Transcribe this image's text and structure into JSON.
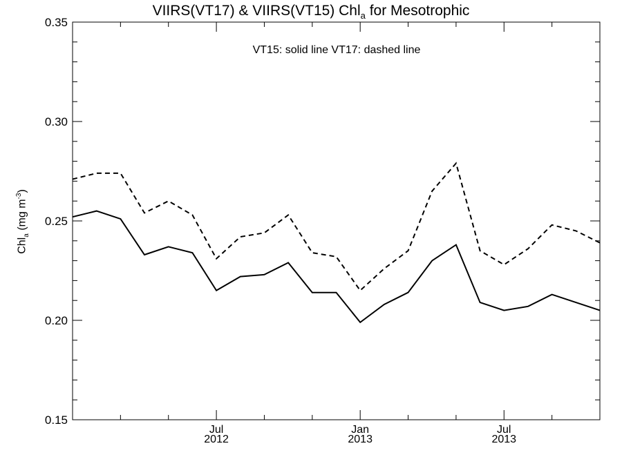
{
  "title": {
    "prefix": "VIIRS(VT17) & VIIRS(VT15)  Chl",
    "subscript": "a",
    "suffix": " for Mesotrophic"
  },
  "ylabel": {
    "base": "Chl",
    "subscript": "a",
    "unit_open": " (mg m",
    "superscript": "-3",
    "unit_close": ")"
  },
  "annotation": "VT15: solid line   VT17: dashed line",
  "chart_data": {
    "type": "line",
    "title": "VIIRS(VT17) & VIIRS(VT15)  Chla for Mesotrophic",
    "xlabel": "",
    "ylabel": "Chla (mg m-3)",
    "ylim": [
      0.15,
      0.35
    ],
    "yticks": [
      "0.15",
      "0.20",
      "0.25",
      "0.30",
      "0.35"
    ],
    "xlim": [
      "2012-01",
      "2013-11"
    ],
    "xticks": [
      {
        "x": "2012-07",
        "month": "Jul",
        "year": "2012"
      },
      {
        "x": "2013-01",
        "month": "Jan",
        "year": "2013"
      },
      {
        "x": "2013-07",
        "month": "Jul",
        "year": "2013"
      }
    ],
    "x": [
      "2012-01",
      "2012-02",
      "2012-03",
      "2012-04",
      "2012-05",
      "2012-06",
      "2012-07",
      "2012-08",
      "2012-09",
      "2012-10",
      "2012-11",
      "2012-12",
      "2013-01",
      "2013-02",
      "2013-03",
      "2013-04",
      "2013-05",
      "2013-06",
      "2013-07",
      "2013-08",
      "2013-09",
      "2013-10",
      "2013-11"
    ],
    "series": [
      {
        "name": "VT15",
        "style": "solid",
        "values": [
          0.252,
          0.255,
          0.251,
          0.233,
          0.237,
          0.234,
          0.215,
          0.222,
          0.223,
          0.229,
          0.214,
          0.214,
          0.199,
          0.208,
          0.214,
          0.23,
          0.238,
          0.209,
          0.205,
          0.207,
          0.213,
          0.209,
          0.205
        ]
      },
      {
        "name": "VT17",
        "style": "dashed",
        "values": [
          0.271,
          0.274,
          0.274,
          0.254,
          0.26,
          0.253,
          0.231,
          0.242,
          0.244,
          0.253,
          0.234,
          0.232,
          0.215,
          0.226,
          0.235,
          0.265,
          0.279,
          0.235,
          0.228,
          0.236,
          0.248,
          0.245,
          0.239
        ]
      }
    ],
    "grid": false,
    "colors": {
      "line": "#000000",
      "axis": "#000000",
      "background": "#ffffff"
    }
  }
}
